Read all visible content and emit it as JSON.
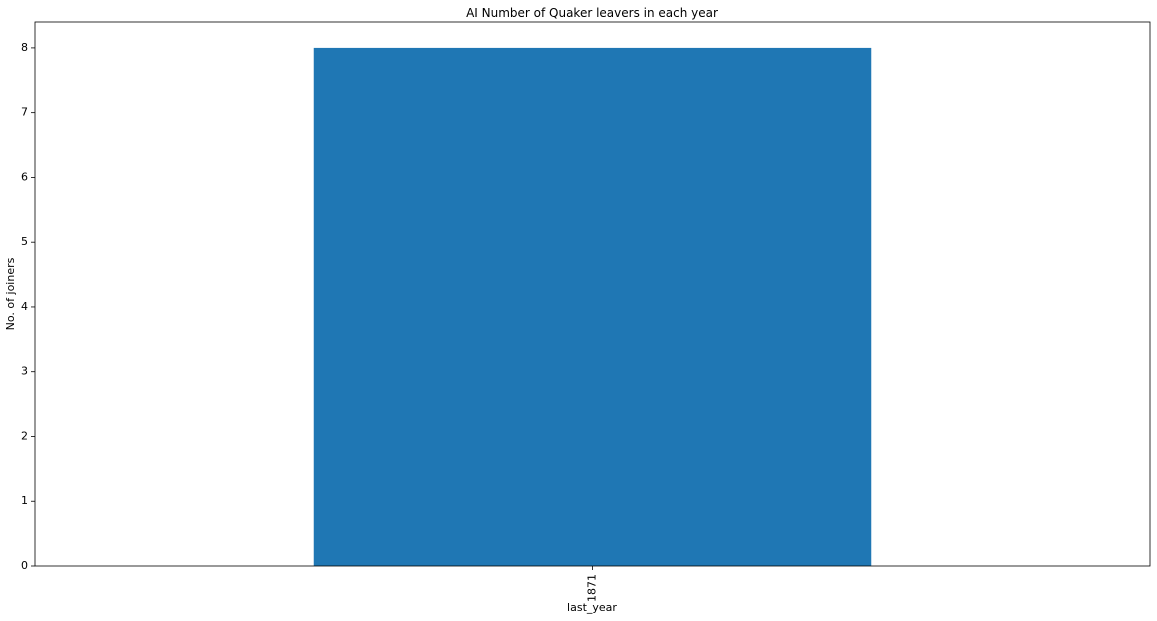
{
  "chart_data": {
    "type": "bar",
    "title": "AI Number of Quaker leavers in each year",
    "xlabel": "last_year",
    "ylabel": "No. of joiners",
    "categories": [
      "1871"
    ],
    "values": [
      8
    ],
    "ylim": [
      0,
      8.4
    ],
    "yticks": [
      0,
      1,
      2,
      3,
      4,
      5,
      6,
      7,
      8
    ],
    "grid": false,
    "legend": "none",
    "bar_color": "#1f77b4"
  }
}
